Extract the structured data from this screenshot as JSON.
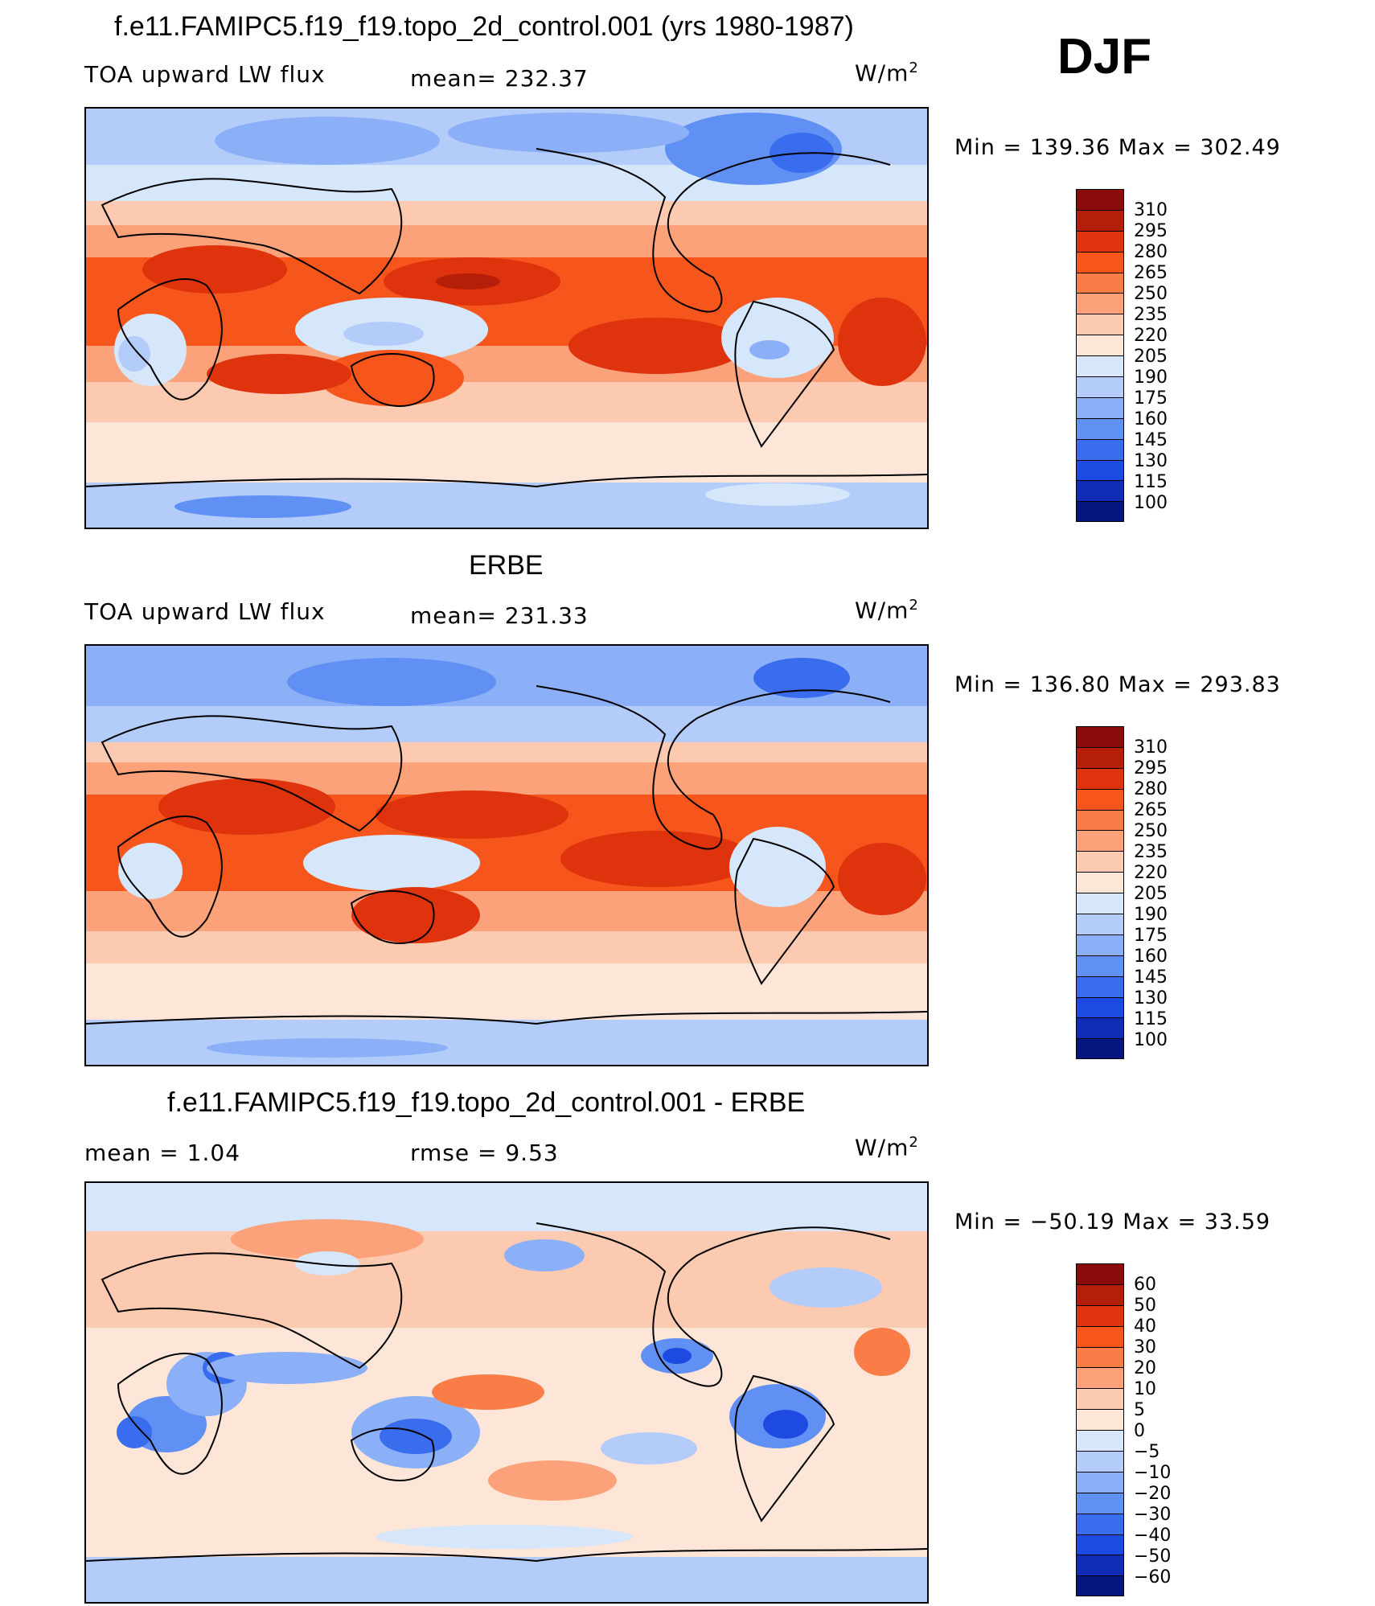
{
  "season": "DJF",
  "units_label": "W/m",
  "units_sup": "2",
  "panels": [
    {
      "title": "f.e11.FAMIPC5.f19_f19.topo_2d_control.001 (yrs 1980-1987)",
      "variable": "TOA upward LW flux",
      "stat_left": "",
      "stat_mid": "mean=  232.37",
      "minmax": "Min  =  139.36  Max  =  302.49",
      "levels": [
        "310",
        "295",
        "280",
        "265",
        "250",
        "235",
        "220",
        "205",
        "190",
        "175",
        "160",
        "145",
        "130",
        "115",
        "100"
      ]
    },
    {
      "title": "ERBE",
      "variable": "TOA upward LW flux",
      "stat_left": "",
      "stat_mid": "mean=  231.33",
      "minmax": "Min  =  136.80  Max  =  293.83",
      "levels": [
        "310",
        "295",
        "280",
        "265",
        "250",
        "235",
        "220",
        "205",
        "190",
        "175",
        "160",
        "145",
        "130",
        "115",
        "100"
      ]
    },
    {
      "title": "f.e11.FAMIPC5.f19_f19.topo_2d_control.001 - ERBE",
      "variable": "",
      "stat_left": "mean  =      1.04",
      "stat_mid": "rmse  =      9.53",
      "minmax": "Min  =  −50.19  Max  =     33.59",
      "levels": [
        "60",
        "50",
        "40",
        "30",
        "20",
        "10",
        "5",
        "0",
        "−5",
        "−10",
        "−20",
        "−30",
        "−40",
        "−50",
        "−60"
      ]
    }
  ],
  "colorbar_colors": [
    "#8b0a0a",
    "#b51e08",
    "#de330d",
    "#f6561c",
    "#fa7c46",
    "#fba27a",
    "#fccab0",
    "#fde6d8",
    "#d6e6fb",
    "#b3ccf9",
    "#8cb0f7",
    "#6090f3",
    "#3a6cee",
    "#1d4ae0",
    "#0f2cb5",
    "#07167e"
  ]
}
